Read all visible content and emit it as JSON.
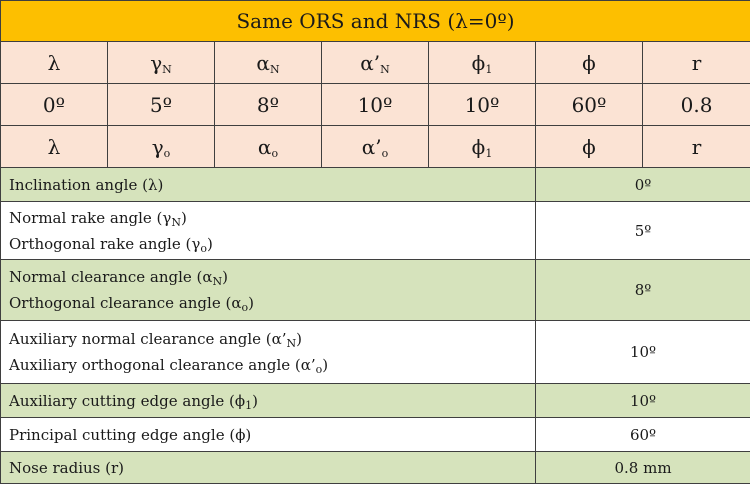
{
  "title": "Same ORS and NRS (λ=0º)",
  "nrs_row": [
    {
      "base": "λ",
      "sub": ""
    },
    {
      "base": "γ",
      "sub": "N"
    },
    {
      "base": "α",
      "sub": "N"
    },
    {
      "base": "α’",
      "sub": "N"
    },
    {
      "base": "ϕ",
      "sub": "1"
    },
    {
      "base": "ϕ",
      "sub": ""
    },
    {
      "base": "r",
      "sub": ""
    }
  ],
  "value_row": [
    "0º",
    "5º",
    "8º",
    "10º",
    "10º",
    "60º",
    "0.8"
  ],
  "ors_row": [
    {
      "base": "λ",
      "sub": ""
    },
    {
      "base": "γ",
      "sub": "o"
    },
    {
      "base": "α",
      "sub": "o"
    },
    {
      "base": "α’",
      "sub": "o"
    },
    {
      "base": "ϕ",
      "sub": "1"
    },
    {
      "base": "ϕ",
      "sub": ""
    },
    {
      "base": "r",
      "sub": ""
    }
  ],
  "details": [
    {
      "lines": [
        {
          "text": "Inclination angle (λ)",
          "sub": "",
          "tail": ""
        }
      ],
      "value": "0º"
    },
    {
      "lines": [
        {
          "text": "Normal rake angle (γ",
          "sub": "N",
          "tail": ")"
        },
        {
          "text": "Orthogonal rake angle (γ",
          "sub": "o",
          "tail": ")"
        }
      ],
      "value": "5º"
    },
    {
      "lines": [
        {
          "text": "Normal clearance angle (α",
          "sub": "N",
          "tail": ")"
        },
        {
          "text": "Orthogonal clearance angle (α",
          "sub": "o",
          "tail": ")"
        }
      ],
      "value": "8º"
    },
    {
      "lines": [
        {
          "text": "Auxiliary normal clearance angle (α’",
          "sub": "N",
          "tail": ")"
        },
        {
          "text": "Auxiliary orthogonal clearance angle (α’",
          "sub": "o",
          "tail": ")"
        }
      ],
      "value": "10º"
    },
    {
      "lines": [
        {
          "text": "Auxiliary cutting edge angle (ϕ",
          "sub": "1",
          "tail": ")"
        }
      ],
      "value": "10º"
    },
    {
      "lines": [
        {
          "text": "Principal cutting edge angle (ϕ)",
          "sub": "",
          "tail": ""
        }
      ],
      "value": "60º"
    },
    {
      "lines": [
        {
          "text": "Nose radius (r)",
          "sub": "",
          "tail": ""
        }
      ],
      "value": "0.8 mm"
    }
  ]
}
